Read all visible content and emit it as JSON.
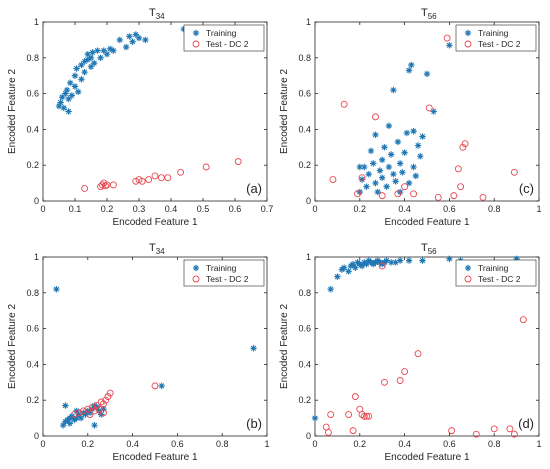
{
  "chart_data": [
    {
      "type": "scatter",
      "panel_label": "(a)",
      "title_base": "T",
      "title_sub": "34",
      "xlabel": "Encoded Feature 1",
      "ylabel": "Encoded Feature 2",
      "xlim": [
        0,
        0.7
      ],
      "ylim": [
        0,
        1
      ],
      "xticks": [
        0,
        0.1,
        0.2,
        0.3,
        0.4,
        0.5,
        0.6,
        0.7
      ],
      "xtick_labels": [
        "0",
        "0.1",
        "0.2",
        "0.3",
        "0.4",
        "0.5",
        "0.6",
        "0.7"
      ],
      "yticks": [
        0,
        0.2,
        0.4,
        0.6,
        0.8,
        1
      ],
      "ytick_labels": [
        "0",
        "0.2",
        "0.4",
        "0.6",
        "0.8",
        "1"
      ],
      "legend_position": "top-right",
      "series": [
        {
          "name": "Training",
          "marker": "asterisk",
          "color": "#1f77b4",
          "points": [
            [
              0.05,
              0.53
            ],
            [
              0.055,
              0.55
            ],
            [
              0.06,
              0.58
            ],
            [
              0.065,
              0.52
            ],
            [
              0.07,
              0.6
            ],
            [
              0.075,
              0.62
            ],
            [
              0.08,
              0.57
            ],
            [
              0.085,
              0.66
            ],
            [
              0.09,
              0.59
            ],
            [
              0.1,
              0.64
            ],
            [
              0.1,
              0.7
            ],
            [
              0.105,
              0.74
            ],
            [
              0.11,
              0.61
            ],
            [
              0.12,
              0.68
            ],
            [
              0.12,
              0.76
            ],
            [
              0.13,
              0.72
            ],
            [
              0.13,
              0.78
            ],
            [
              0.14,
              0.79
            ],
            [
              0.14,
              0.82
            ],
            [
              0.15,
              0.75
            ],
            [
              0.15,
              0.8
            ],
            [
              0.155,
              0.83
            ],
            [
              0.16,
              0.77
            ],
            [
              0.17,
              0.84
            ],
            [
              0.18,
              0.8
            ],
            [
              0.19,
              0.84
            ],
            [
              0.2,
              0.82
            ],
            [
              0.21,
              0.85
            ],
            [
              0.22,
              0.84
            ],
            [
              0.24,
              0.9
            ],
            [
              0.26,
              0.86
            ],
            [
              0.27,
              0.92
            ],
            [
              0.28,
              0.89
            ],
            [
              0.29,
              0.93
            ],
            [
              0.3,
              0.91
            ],
            [
              0.32,
              0.9
            ],
            [
              0.44,
              0.96
            ],
            [
              0.08,
              0.5
            ]
          ]
        },
        {
          "name": "Test - DC 2",
          "marker": "circle",
          "color": "#e8474e",
          "points": [
            [
              0.13,
              0.07
            ],
            [
              0.18,
              0.08
            ],
            [
              0.185,
              0.09
            ],
            [
              0.19,
              0.1
            ],
            [
              0.195,
              0.085
            ],
            [
              0.2,
              0.09
            ],
            [
              0.22,
              0.09
            ],
            [
              0.29,
              0.11
            ],
            [
              0.3,
              0.12
            ],
            [
              0.31,
              0.11
            ],
            [
              0.33,
              0.12
            ],
            [
              0.35,
              0.14
            ],
            [
              0.37,
              0.13
            ],
            [
              0.39,
              0.13
            ],
            [
              0.43,
              0.16
            ],
            [
              0.51,
              0.19
            ],
            [
              0.61,
              0.22
            ]
          ]
        }
      ]
    },
    {
      "type": "scatter",
      "panel_label": "(c)",
      "title_base": "T",
      "title_sub": "56",
      "xlabel": "Encoded Feature 1",
      "ylabel": "Encoded Feature 2",
      "xlim": [
        0,
        1
      ],
      "ylim": [
        0,
        1
      ],
      "xticks": [
        0,
        0.2,
        0.4,
        0.6,
        0.8,
        1
      ],
      "xtick_labels": [
        "0",
        "0.2",
        "0.4",
        "0.6",
        "0.8",
        "1"
      ],
      "yticks": [
        0,
        0.2,
        0.4,
        0.6,
        0.8,
        1
      ],
      "ytick_labels": [
        "0",
        "0.2",
        "0.4",
        "0.6",
        "0.8",
        "1"
      ],
      "legend_position": "top-right",
      "series": [
        {
          "name": "Training",
          "marker": "asterisk",
          "color": "#1f77b4",
          "points": [
            [
              0.2,
              0.05
            ],
            [
              0.21,
              0.12
            ],
            [
              0.22,
              0.19
            ],
            [
              0.23,
              0.08
            ],
            [
              0.24,
              0.15
            ],
            [
              0.25,
              0.28
            ],
            [
              0.26,
              0.21
            ],
            [
              0.27,
              0.1
            ],
            [
              0.27,
              0.37
            ],
            [
              0.28,
              0.05
            ],
            [
              0.29,
              0.17
            ],
            [
              0.3,
              0.23
            ],
            [
              0.3,
              0.13
            ],
            [
              0.31,
              0.3
            ],
            [
              0.32,
              0.08
            ],
            [
              0.33,
              0.42
            ],
            [
              0.33,
              0.19
            ],
            [
              0.34,
              0.26
            ],
            [
              0.35,
              0.15
            ],
            [
              0.35,
              0.62
            ],
            [
              0.36,
              0.11
            ],
            [
              0.37,
              0.33
            ],
            [
              0.38,
              0.21
            ],
            [
              0.38,
              0.05
            ],
            [
              0.39,
              0.16
            ],
            [
              0.4,
              0.27
            ],
            [
              0.41,
              0.38
            ],
            [
              0.42,
              0.1
            ],
            [
              0.42,
              0.73
            ],
            [
              0.43,
              0.76
            ],
            [
              0.44,
              0.19
            ],
            [
              0.44,
              0.39
            ],
            [
              0.45,
              0.14
            ],
            [
              0.46,
              0.31
            ],
            [
              0.47,
              0.25
            ],
            [
              0.48,
              0.36
            ],
            [
              0.5,
              0.71
            ],
            [
              0.53,
              0.5
            ],
            [
              0.6,
              0.87
            ],
            [
              0.2,
              0.19
            ]
          ]
        },
        {
          "name": "Test - DC 2",
          "marker": "circle",
          "color": "#e8474e",
          "points": [
            [
              0.08,
              0.12
            ],
            [
              0.13,
              0.54
            ],
            [
              0.19,
              0.04
            ],
            [
              0.21,
              0.13
            ],
            [
              0.27,
              0.47
            ],
            [
              0.3,
              0.03
            ],
            [
              0.37,
              0.04
            ],
            [
              0.4,
              0.08
            ],
            [
              0.44,
              0.04
            ],
            [
              0.51,
              0.52
            ],
            [
              0.55,
              0.02
            ],
            [
              0.59,
              0.91
            ],
            [
              0.62,
              0.03
            ],
            [
              0.64,
              0.18
            ],
            [
              0.65,
              0.08
            ],
            [
              0.66,
              0.3
            ],
            [
              0.67,
              0.32
            ],
            [
              0.75,
              0.02
            ],
            [
              0.89,
              0.16
            ]
          ]
        }
      ]
    },
    {
      "type": "scatter",
      "panel_label": "(b)",
      "title_base": "T",
      "title_sub": "34",
      "xlabel": "Encoded Feature 1",
      "ylabel": "Encoded Feature 2",
      "xlim": [
        0,
        1
      ],
      "ylim": [
        0,
        1
      ],
      "xticks": [
        0,
        0.2,
        0.4,
        0.6,
        0.8,
        1
      ],
      "xtick_labels": [
        "0",
        "0.2",
        "0.4",
        "0.6",
        "0.8",
        "1"
      ],
      "yticks": [
        0,
        0.2,
        0.4,
        0.6,
        0.8,
        1
      ],
      "ytick_labels": [
        "0",
        "0.2",
        "0.4",
        "0.6",
        "0.8",
        "1"
      ],
      "legend_position": "top-right",
      "series": [
        {
          "name": "Training",
          "marker": "asterisk",
          "color": "#1f77b4",
          "points": [
            [
              0.06,
              0.82
            ],
            [
              0.94,
              0.49
            ],
            [
              0.53,
              0.28
            ],
            [
              0.09,
              0.06
            ],
            [
              0.1,
              0.08
            ],
            [
              0.1,
              0.17
            ],
            [
              0.11,
              0.09
            ],
            [
              0.12,
              0.1
            ],
            [
              0.12,
              0.07
            ],
            [
              0.13,
              0.11
            ],
            [
              0.14,
              0.09
            ],
            [
              0.15,
              0.1
            ],
            [
              0.16,
              0.12
            ],
            [
              0.17,
              0.1
            ],
            [
              0.18,
              0.13
            ],
            [
              0.19,
              0.12
            ],
            [
              0.2,
              0.14
            ],
            [
              0.21,
              0.13
            ],
            [
              0.22,
              0.15
            ],
            [
              0.23,
              0.17
            ],
            [
              0.24,
              0.16
            ],
            [
              0.25,
              0.14
            ],
            [
              0.26,
              0.12
            ],
            [
              0.27,
              0.15
            ],
            [
              0.23,
              0.06
            ],
            [
              0.15,
              0.14
            ]
          ]
        },
        {
          "name": "Test - DC 2",
          "marker": "circle",
          "color": "#e8474e",
          "points": [
            [
              0.14,
              0.12
            ],
            [
              0.16,
              0.13
            ],
            [
              0.18,
              0.14
            ],
            [
              0.2,
              0.15
            ],
            [
              0.21,
              0.12
            ],
            [
              0.22,
              0.16
            ],
            [
              0.23,
              0.14
            ],
            [
              0.24,
              0.17
            ],
            [
              0.25,
              0.15
            ],
            [
              0.26,
              0.19
            ],
            [
              0.27,
              0.18
            ],
            [
              0.28,
              0.2
            ],
            [
              0.29,
              0.22
            ],
            [
              0.3,
              0.24
            ],
            [
              0.5,
              0.28
            ],
            [
              0.27,
              0.13
            ]
          ]
        }
      ]
    },
    {
      "type": "scatter",
      "panel_label": "(d)",
      "title_base": "T",
      "title_sub": "56",
      "xlabel": "Encoded Feature 1",
      "ylabel": "Encoded Feature 2",
      "xlim": [
        0,
        1
      ],
      "ylim": [
        0,
        1
      ],
      "xticks": [
        0,
        0.2,
        0.4,
        0.6,
        0.8,
        1
      ],
      "xtick_labels": [
        "0",
        "0.2",
        "0.4",
        "0.6",
        "0.8",
        "1"
      ],
      "yticks": [
        0,
        0.2,
        0.4,
        0.6,
        0.8,
        1
      ],
      "ytick_labels": [
        "0",
        "0.2",
        "0.4",
        "0.6",
        "0.8",
        "1"
      ],
      "legend_position": "top-right",
      "series": [
        {
          "name": "Training",
          "marker": "asterisk",
          "color": "#1f77b4",
          "points": [
            [
              0.07,
              0.82
            ],
            [
              0.1,
              0.89
            ],
            [
              0.12,
              0.93
            ],
            [
              0.13,
              0.94
            ],
            [
              0.15,
              0.92
            ],
            [
              0.16,
              0.95
            ],
            [
              0.17,
              0.96
            ],
            [
              0.18,
              0.94
            ],
            [
              0.19,
              0.97
            ],
            [
              0.2,
              0.96
            ],
            [
              0.21,
              0.95
            ],
            [
              0.22,
              0.97
            ],
            [
              0.23,
              0.96
            ],
            [
              0.24,
              0.98
            ],
            [
              0.25,
              0.97
            ],
            [
              0.26,
              0.96
            ],
            [
              0.27,
              0.97
            ],
            [
              0.28,
              0.98
            ],
            [
              0.29,
              0.97
            ],
            [
              0.3,
              0.96
            ],
            [
              0.31,
              0.97
            ],
            [
              0.32,
              0.98
            ],
            [
              0.34,
              0.97
            ],
            [
              0.36,
              0.97
            ],
            [
              0.38,
              0.98
            ],
            [
              0.42,
              0.98
            ],
            [
              0.48,
              0.98
            ],
            [
              0.6,
              0.99
            ],
            [
              0.65,
              0.98
            ],
            [
              0.9,
              0.99
            ],
            [
              0.0,
              0.1
            ],
            [
              0.27,
              0.97
            ]
          ]
        },
        {
          "name": "Test - DC 2",
          "marker": "circle",
          "color": "#e8474e",
          "points": [
            [
              0.05,
              0.05
            ],
            [
              0.06,
              0.02
            ],
            [
              0.07,
              0.12
            ],
            [
              0.15,
              0.12
            ],
            [
              0.17,
              0.03
            ],
            [
              0.18,
              0.22
            ],
            [
              0.2,
              0.15
            ],
            [
              0.21,
              0.12
            ],
            [
              0.22,
              0.11
            ],
            [
              0.23,
              0.11
            ],
            [
              0.24,
              0.11
            ],
            [
              0.3,
              0.95
            ],
            [
              0.31,
              0.3
            ],
            [
              0.38,
              0.31
            ],
            [
              0.4,
              0.36
            ],
            [
              0.46,
              0.46
            ],
            [
              0.61,
              0.03
            ],
            [
              0.72,
              0.01
            ],
            [
              0.8,
              0.04
            ],
            [
              0.89,
              0.01
            ],
            [
              0.93,
              0.65
            ],
            [
              0.87,
              0.04
            ]
          ]
        }
      ]
    }
  ]
}
